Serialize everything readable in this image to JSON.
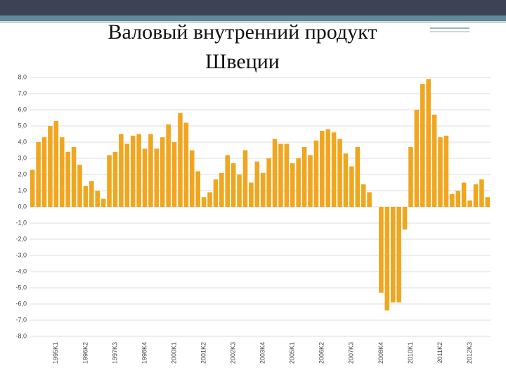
{
  "chart_data": {
    "type": "bar",
    "title": "Валовый внутренний продукт",
    "subtitle": "Швеции",
    "categories": [
      null,
      null,
      null,
      null,
      "1995K1",
      null,
      null,
      null,
      null,
      "1996K2",
      null,
      null,
      null,
      null,
      "1997K3",
      null,
      null,
      null,
      null,
      "1998K4",
      null,
      null,
      null,
      null,
      "2000K1",
      null,
      null,
      null,
      null,
      "2001K2",
      null,
      null,
      null,
      null,
      "2002K3",
      null,
      null,
      null,
      null,
      "2003K4",
      null,
      null,
      null,
      null,
      "2005K1",
      null,
      null,
      null,
      null,
      "2006K2",
      null,
      null,
      null,
      null,
      "2007K3",
      null,
      null,
      null,
      null,
      "2008K4",
      null,
      null,
      null,
      null,
      "2010K1",
      null,
      null,
      null,
      null,
      "2011K2",
      null,
      null,
      null,
      null,
      "2012K3",
      null,
      null,
      null
    ],
    "values": [
      2.3,
      4.0,
      4.3,
      5.0,
      5.3,
      4.3,
      3.4,
      3.7,
      2.6,
      1.3,
      1.6,
      1.0,
      0.5,
      3.2,
      3.4,
      4.5,
      3.9,
      4.4,
      4.5,
      3.6,
      4.5,
      3.6,
      4.3,
      5.1,
      4.0,
      5.8,
      5.2,
      3.5,
      2.2,
      0.6,
      0.9,
      1.7,
      2.1,
      3.2,
      2.7,
      2.0,
      3.5,
      1.5,
      2.8,
      2.1,
      3.0,
      4.2,
      3.9,
      3.9,
      2.7,
      3.0,
      3.7,
      3.2,
      4.1,
      4.7,
      4.8,
      4.6,
      4.2,
      3.3,
      2.5,
      3.7,
      1.4,
      0.9,
      0.0,
      -5.3,
      -6.4,
      -5.9,
      -5.9,
      -1.4,
      3.7,
      6.0,
      7.6,
      7.9,
      5.7,
      4.3,
      4.4,
      0.8,
      1.0,
      1.5,
      0.4,
      1.4,
      1.7,
      0.6
    ],
    "color": "#f0a61e",
    "ylim": [
      -8,
      8
    ],
    "yticks": [
      {
        "value": -8,
        "label": "-8,0"
      },
      {
        "value": -7,
        "label": "-7,0"
      },
      {
        "value": -6,
        "label": "-6,0"
      },
      {
        "value": -5,
        "label": "-5,0"
      },
      {
        "value": -4,
        "label": "-4,0"
      },
      {
        "value": -3,
        "label": "-3,0"
      },
      {
        "value": -2,
        "label": "-2,0"
      },
      {
        "value": -1,
        "label": "-1,0"
      },
      {
        "value": 0,
        "label": "0,0"
      },
      {
        "value": 1,
        "label": "1,0"
      },
      {
        "value": 2,
        "label": "2,0"
      },
      {
        "value": 3,
        "label": "3,0"
      },
      {
        "value": 4,
        "label": "4,0"
      },
      {
        "value": 5,
        "label": "5,0"
      },
      {
        "value": 6,
        "label": "6,0"
      },
      {
        "value": 7,
        "label": "7,0"
      },
      {
        "value": 8,
        "label": "8,0"
      }
    ],
    "grid": true
  }
}
